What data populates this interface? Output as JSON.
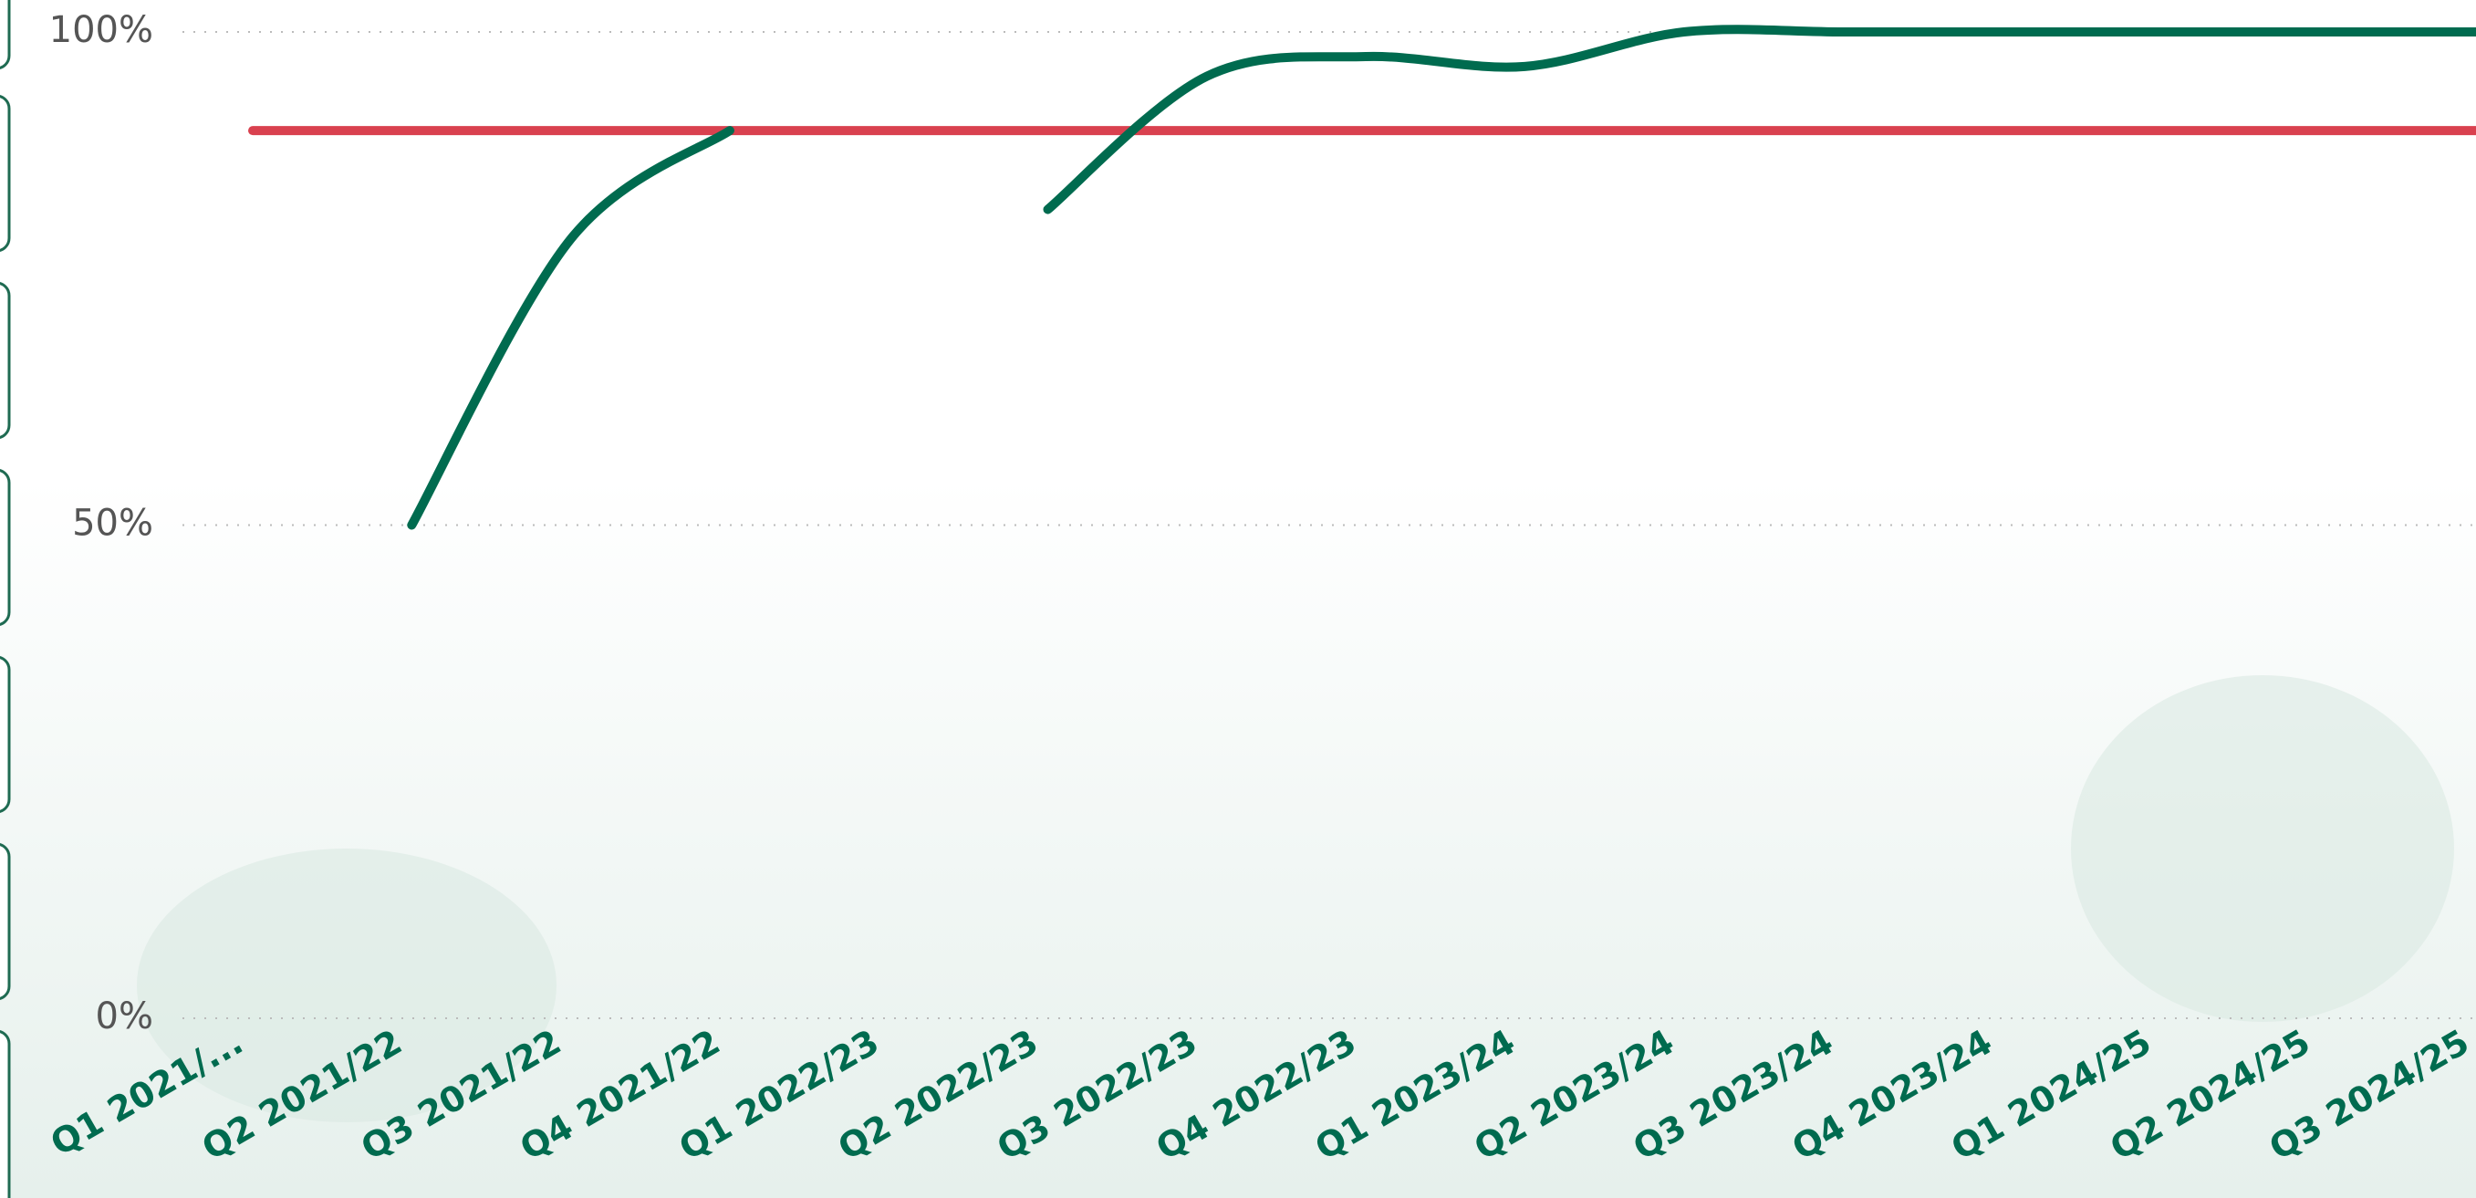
{
  "chart_data": {
    "type": "line",
    "categories": [
      "Q1 2021/...",
      "Q2 2021/22",
      "Q3 2021/22",
      "Q4 2021/22",
      "Q1 2022/23",
      "Q2 2022/23",
      "Q3 2022/23",
      "Q4 2022/23",
      "Q1 2023/24",
      "Q2 2023/24",
      "Q3 2023/24",
      "Q4 2023/24",
      "Q1 2024/25",
      "Q2 2024/25",
      "Q3 2024/25"
    ],
    "series": [
      {
        "color": "#006b4f",
        "values": [
          null,
          50,
          79,
          90,
          null,
          82,
          95.5,
          97.5,
          96.5,
          100,
          100,
          100,
          100,
          100,
          100
        ]
      },
      {
        "color": "#d9414f",
        "values": [
          90,
          90,
          90,
          90,
          90,
          90,
          90,
          90,
          90,
          90,
          90,
          90,
          90,
          90,
          90
        ]
      }
    ],
    "ylim": [
      0,
      100
    ],
    "yticks": [
      {
        "value": 0,
        "label": "0%"
      },
      {
        "value": 50,
        "label": "50%"
      },
      {
        "value": 100,
        "label": "100%"
      }
    ],
    "grid": true
  }
}
